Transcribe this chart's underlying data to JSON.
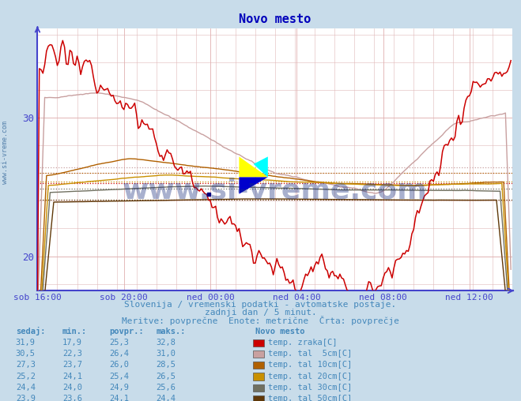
{
  "title": "Novo mesto",
  "bg_color": "#c8dcea",
  "plot_bg_color": "#ffffff",
  "grid_color_major": "#e8b0b0",
  "grid_color_minor": "#d8d8e8",
  "axis_color": "#4444cc",
  "title_color": "#0000bb",
  "text_color": "#4488bb",
  "watermark": "www.si-vreme.com",
  "subtitle1": "Slovenija / vremenski podatki - avtomatske postaje.",
  "subtitle2": "zadnji dan / 5 minut.",
  "subtitle3": "Meritve: povprečne  Enote: metrične  Črta: povprečje",
  "xtick_labels": [
    "sob 16:00",
    "sob 20:00",
    "ned 00:00",
    "ned 04:00",
    "ned 08:00",
    "ned 12:00"
  ],
  "xtick_positions": [
    0,
    48,
    96,
    144,
    192,
    240
  ],
  "ytick_labels": [
    "20",
    "30"
  ],
  "ytick_positions": [
    20,
    30
  ],
  "ylim": [
    17.5,
    36.5
  ],
  "xlim": [
    0,
    264
  ],
  "series_colors": {
    "temp_zraka": "#cc0000",
    "temp_5cm": "#c8a0a0",
    "temp_10cm": "#b06000",
    "temp_20cm": "#c89000",
    "temp_30cm": "#707060",
    "temp_50cm": "#603808"
  },
  "avg_lines": [
    {
      "y": 25.3,
      "color": "#cc0000"
    },
    {
      "y": 26.4,
      "color": "#c8a0a0"
    },
    {
      "y": 26.0,
      "color": "#b06000"
    },
    {
      "y": 25.4,
      "color": "#c89000"
    },
    {
      "y": 24.9,
      "color": "#707060"
    },
    {
      "y": 24.1,
      "color": "#603808"
    }
  ],
  "legend_data": [
    {
      "sedaj": "31,9",
      "min": "17,9",
      "povpr": "25,3",
      "maks": "32,8",
      "color": "#cc0000",
      "label": "temp. zraka[C]"
    },
    {
      "sedaj": "30,5",
      "min": "22,3",
      "povpr": "26,4",
      "maks": "31,0",
      "color": "#c8a0a0",
      "label": "temp. tal  5cm[C]"
    },
    {
      "sedaj": "27,3",
      "min": "23,7",
      "povpr": "26,0",
      "maks": "28,5",
      "color": "#b06000",
      "label": "temp. tal 10cm[C]"
    },
    {
      "sedaj": "25,2",
      "min": "24,1",
      "povpr": "25,4",
      "maks": "26,5",
      "color": "#c89000",
      "label": "temp. tal 20cm[C]"
    },
    {
      "sedaj": "24,4",
      "min": "24,0",
      "povpr": "24,9",
      "maks": "25,6",
      "color": "#707060",
      "label": "temp. tal 30cm[C]"
    },
    {
      "sedaj": "23,9",
      "min": "23,6",
      "povpr": "24,1",
      "maks": "24,4",
      "color": "#603808",
      "label": "temp. tal 50cm[C]"
    }
  ]
}
